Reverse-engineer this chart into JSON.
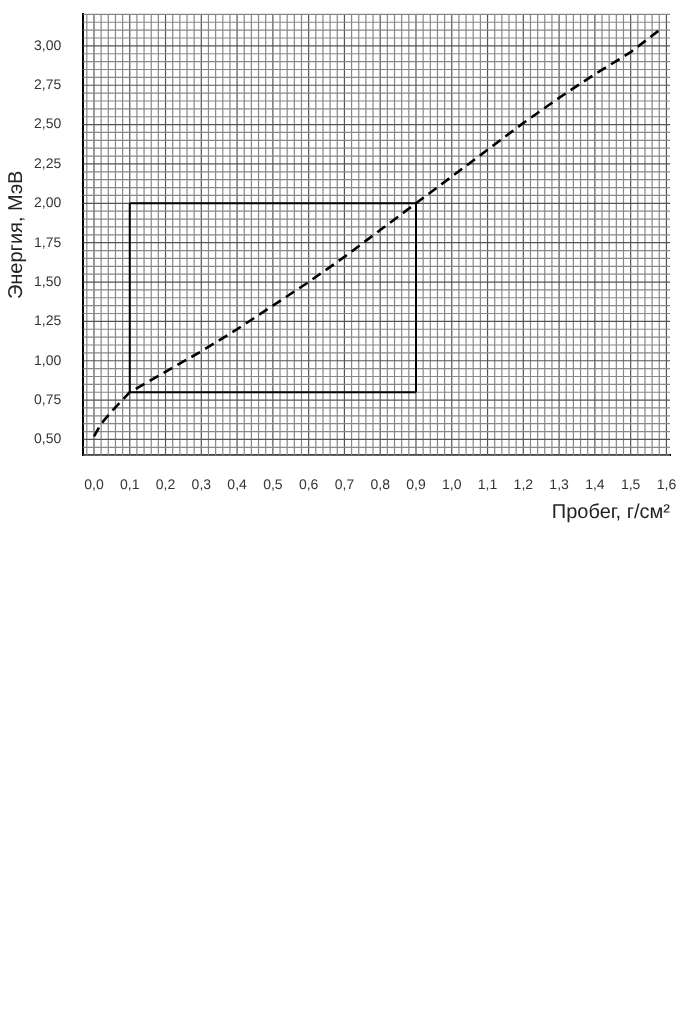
{
  "chart_data": {
    "type": "line",
    "xlabel": "Пробег, г/см²",
    "ylabel": "Энергия, МэВ",
    "series": [
      {
        "color": "#000000",
        "x": [
          0.0,
          0.02,
          0.05,
          0.1,
          0.2,
          0.3,
          0.4,
          0.5,
          0.6,
          0.7,
          0.8,
          0.9,
          1.0,
          1.1,
          1.2,
          1.3,
          1.4,
          1.5,
          1.58
        ],
        "values": [
          0.52,
          0.6,
          0.68,
          0.8,
          0.93,
          1.06,
          1.2,
          1.35,
          1.5,
          1.66,
          1.83,
          2.0,
          2.17,
          2.34,
          2.51,
          2.67,
          2.82,
          2.96,
          3.1
        ]
      }
    ],
    "xlim": [
      -0.03,
      1.61
    ],
    "ylim": [
      0.4,
      3.2
    ],
    "xticks": [
      {
        "value": 0,
        "label": "0,0"
      },
      {
        "value": 0.1,
        "label": "0,1"
      },
      {
        "value": 0.2,
        "label": "0,2"
      },
      {
        "value": 0.3,
        "label": "0,3"
      },
      {
        "value": 0.4,
        "label": "0,4"
      },
      {
        "value": 0.5,
        "label": "0,5"
      },
      {
        "value": 0.6,
        "label": "0,6"
      },
      {
        "value": 0.7,
        "label": "0,7"
      },
      {
        "value": 0.8,
        "label": "0,8"
      },
      {
        "value": 0.9,
        "label": "0,9"
      },
      {
        "value": 1.0,
        "label": "1,0"
      },
      {
        "value": 1.1,
        "label": "1,1"
      },
      {
        "value": 1.2,
        "label": "1,2"
      },
      {
        "value": 1.3,
        "label": "1,3"
      },
      {
        "value": 1.4,
        "label": "1,4"
      },
      {
        "value": 1.5,
        "label": "1,5"
      },
      {
        "value": 1.6,
        "label": "1,6"
      }
    ],
    "yticks": [
      {
        "value": 0.5,
        "label": "0,50"
      },
      {
        "value": 0.75,
        "label": "0,75"
      },
      {
        "value": 1.0,
        "label": "1,00"
      },
      {
        "value": 1.25,
        "label": "1,25"
      },
      {
        "value": 1.5,
        "label": "1,50"
      },
      {
        "value": 1.75,
        "label": "1,75"
      },
      {
        "value": 2.0,
        "label": "2,00"
      },
      {
        "value": 2.25,
        "label": "2,25"
      },
      {
        "value": 2.5,
        "label": "2,50"
      },
      {
        "value": 2.75,
        "label": "2,75"
      },
      {
        "value": 3.0,
        "label": "3,00"
      }
    ],
    "ref_lines": [
      {
        "axis": "x",
        "value": 0.1,
        "color": "#000000"
      },
      {
        "axis": "x",
        "value": 0.9,
        "color": "#000000"
      },
      {
        "axis": "y",
        "value": 0.8,
        "color": "#000000"
      },
      {
        "axis": "y",
        "value": 2.0,
        "color": "#000000"
      }
    ],
    "grid": true,
    "marker": "none",
    "line_style": "dashed",
    "legend": false
  }
}
